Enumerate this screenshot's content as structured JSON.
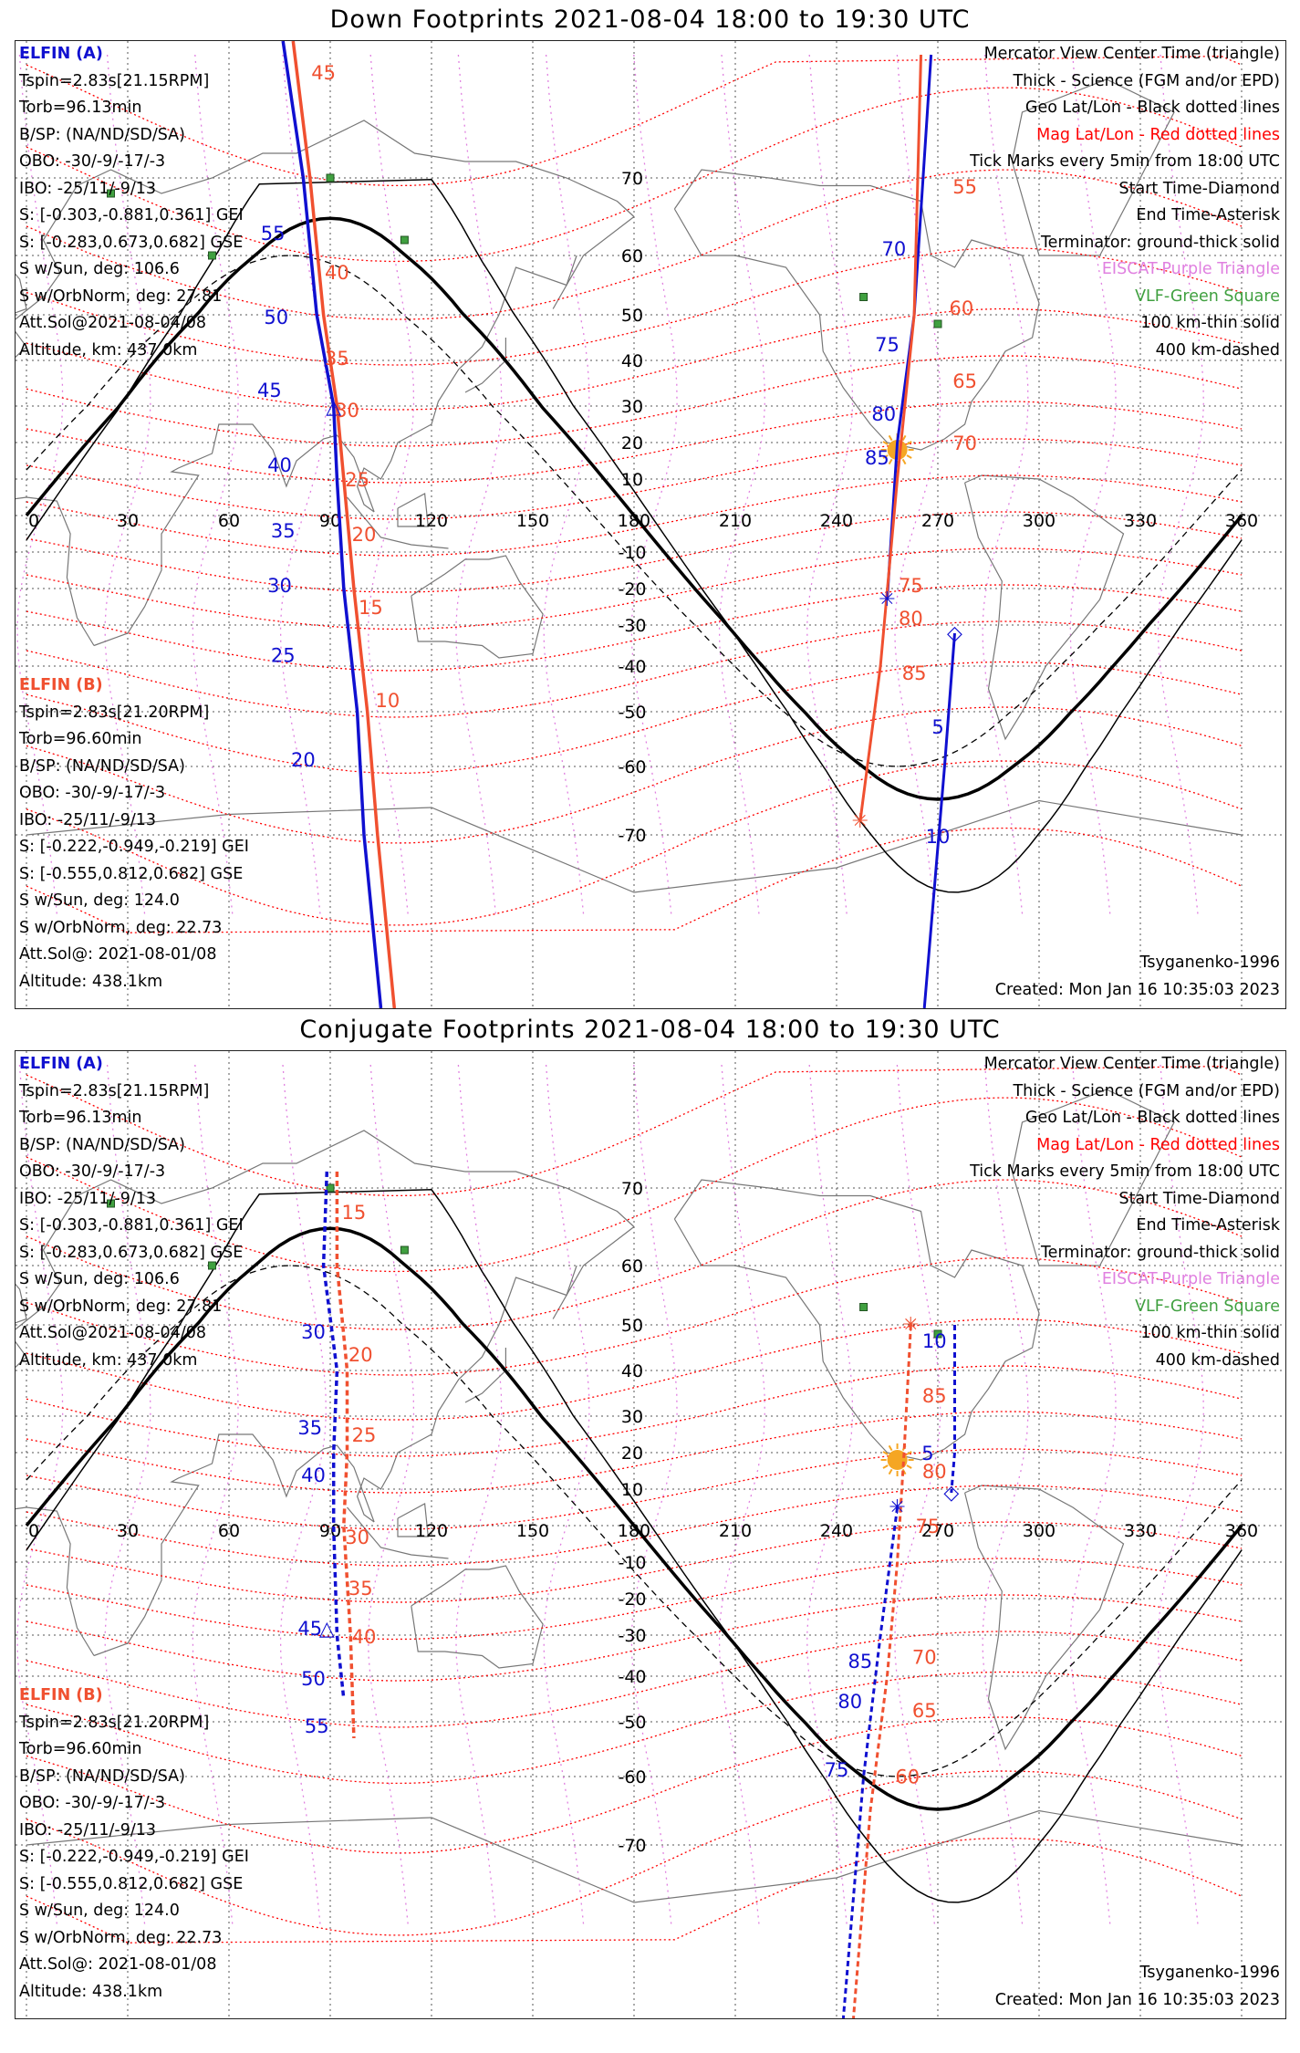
{
  "colors": {
    "elfin_a": "#1010d0",
    "elfin_b": "#f05030",
    "mag_grid": "#ff0000",
    "geo_grid": "#555555",
    "coast": "#777777",
    "lshell": "#e080e0",
    "vlf": "#40a040",
    "sun": "#f5a623",
    "terminator": "#000000"
  },
  "lon_labels": [
    "0",
    "30",
    "60",
    "90",
    "120",
    "150",
    "180",
    "210",
    "240",
    "270",
    "300",
    "330",
    "360"
  ],
  "lat_labels": [
    "70",
    "60",
    "50",
    "40",
    "30",
    "20",
    "10",
    "-10",
    "-20",
    "-30",
    "-40",
    "-50",
    "-60",
    "-70"
  ],
  "info_a": {
    "title": "ELFIN (A)",
    "lines": [
      "Tspin=2.83s[21.15RPM]",
      "Torb=96.13min",
      "B/SP: (NA/ND/SD/SA)",
      "OBO: -30/-9/-17/-3",
      "IBO: -25/11/-9/13",
      "S: [-0.303,-0.881,0.361] GEI",
      "S: [-0.283,0.673,0.682] GSE",
      "S w/Sun, deg: 106.6",
      "S w/OrbNorm, deg: 27.81",
      "Att.Sol@2021-08-04/08",
      "Altitude, km: 437.0km"
    ]
  },
  "info_b": {
    "title": "ELFIN (B)",
    "lines": [
      "Tspin=2.83s[21.20RPM]",
      "Torb=96.60min",
      "B/SP: (NA/ND/SD/SA)",
      "OBO: -30/-9/-17/-3",
      "IBO: -25/11/-9/13",
      "S: [-0.222,-0.949,-0.219] GEI",
      "S: [-0.555,0.812,0.682] GSE",
      "S w/Sun, deg: 124.0",
      "S w/OrbNorm, deg: 22.73",
      "Att.Sol@: 2021-08-01/08",
      "Altitude: 438.1km"
    ]
  },
  "legend": {
    "line1": "Mercator View Center Time (triangle)",
    "line2": "Thick - Science (FGM and/or EPD)",
    "line3": "Geo Lat/Lon - Black dotted lines",
    "line4": "Mag Lat/Lon - Red dotted lines",
    "line5": "Tick Marks every 5min from 18:00 UTC",
    "line6": "Start Time-Diamond",
    "line7": "End Time-Asterisk",
    "line8": "Terminator: ground-thick solid",
    "line9": "EISCAT-Purple Triangle",
    "line10": "VLF-Green Square",
    "line11": "100 km-thin solid",
    "line12": "400 km-dashed"
  },
  "footer": {
    "model": "Tsyganenko-1996",
    "created": "Created: Mon Jan 16 10:35:03 2023"
  },
  "panel_down": {
    "title": "Down Footprints 2021-08-04 18:00 to 19:30 UTC",
    "track_a_labels": [
      "55",
      "50",
      "45",
      "40",
      "35",
      "30",
      "25",
      "20",
      "70",
      "75",
      "80",
      "85",
      "5",
      "10"
    ],
    "track_b_labels": [
      "45",
      "40",
      "35",
      "30",
      "25",
      "20",
      "15",
      "10",
      "55",
      "60",
      "65",
      "70",
      "75",
      "80",
      "85"
    ]
  },
  "panel_conj": {
    "title": "Conjugate Footprints 2021-08-04 18:00 to 19:30 UTC",
    "track_a_labels": [
      "30",
      "35",
      "40",
      "45",
      "50",
      "55",
      "10",
      "5",
      "85",
      "80",
      "75"
    ],
    "track_b_labels": [
      "15",
      "20",
      "25",
      "30",
      "35",
      "40",
      "85",
      "80",
      "75",
      "70",
      "65",
      "60"
    ]
  }
}
